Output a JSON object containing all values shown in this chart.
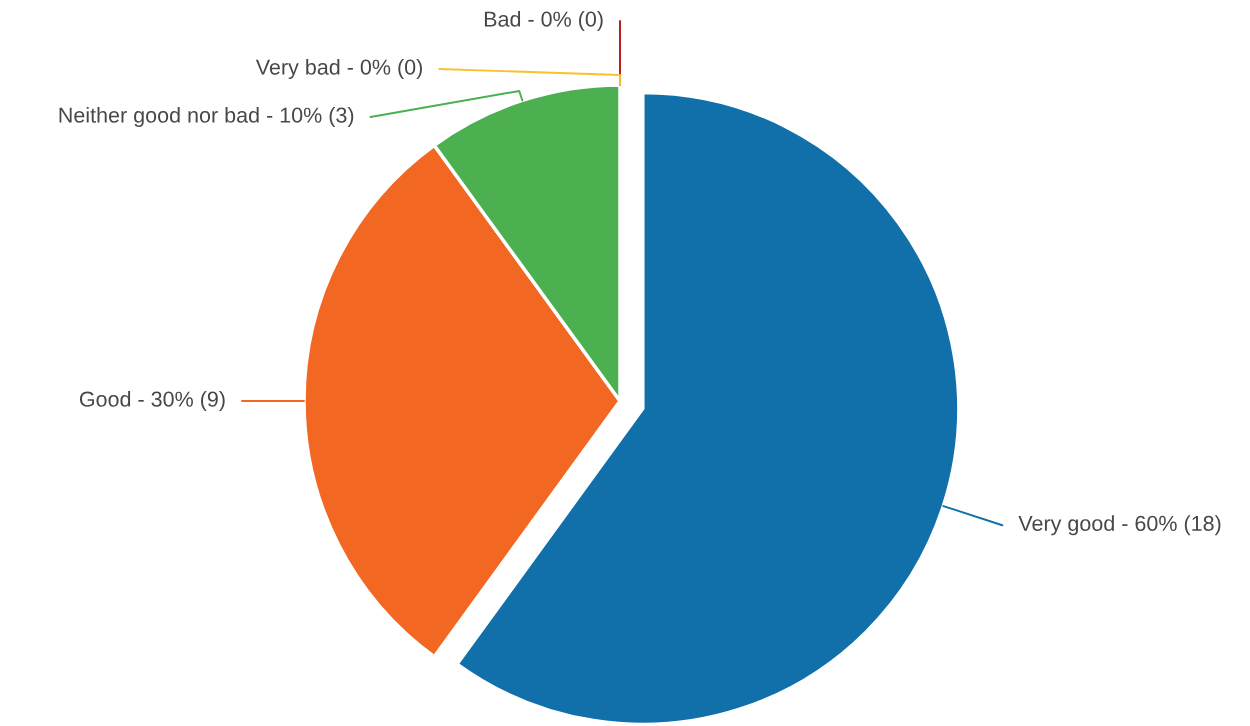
{
  "chart_data": {
    "type": "pie",
    "categories": [
      "Very good",
      "Good",
      "Neither good nor bad",
      "Very bad",
      "Bad"
    ],
    "values": [
      18,
      9,
      3,
      0,
      0
    ],
    "value_labels": [
      "- 60% (18)",
      "- 30% (9)",
      "- 10% (3)",
      "- 0% (0)",
      "- 0% (0)"
    ],
    "colors": [
      "#1170aa",
      "#f26722",
      "#4caf50",
      "#fbc02d",
      "#b71c1c"
    ]
  }
}
